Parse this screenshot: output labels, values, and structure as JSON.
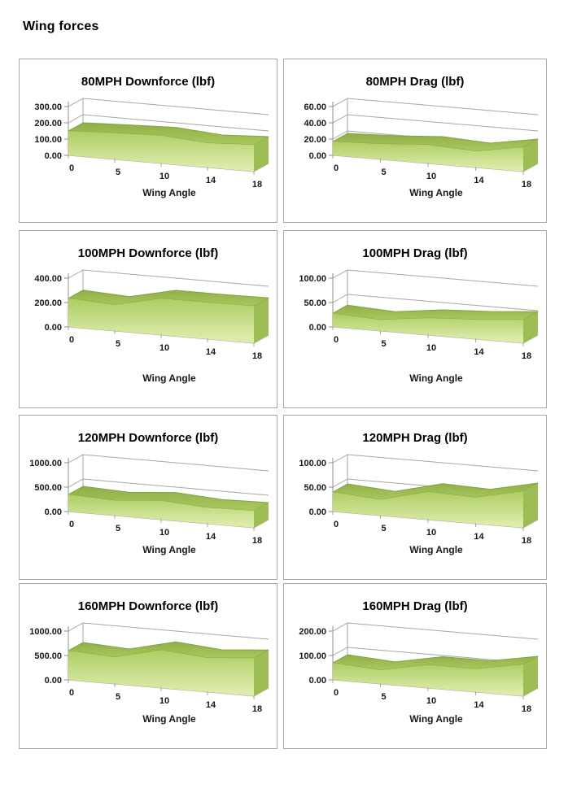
{
  "page": {
    "title": "Wing forces"
  },
  "colors": {
    "panel_border": "#a6a6a6",
    "grid_line": "#a6a6a6",
    "axis_line": "#8f8f8f",
    "axis_text": "#16181d",
    "area_front_top": "#aecd63",
    "area_front_bottom": "#ddecab",
    "area_ribbon_light": "#a9c95e",
    "area_ribbon_dark": "#8fae49",
    "area_ribbon_edge": "#85a243",
    "area_side": "#9dbd55"
  },
  "chart_data": [
    {
      "type": "area",
      "title": "80MPH Downforce (lbf)",
      "xlabel": "Wing Angle",
      "categories": [
        0,
        5,
        10,
        14,
        18
      ],
      "values": [
        150,
        162,
        172,
        150,
        165
      ],
      "yticks": [
        0,
        100,
        200,
        300
      ],
      "ylim": [
        0,
        300
      ],
      "ytick_decimals": 2,
      "grid": true,
      "legend": false,
      "style": "3d-area-green"
    },
    {
      "type": "area",
      "title": "80MPH Drag (lbf)",
      "xlabel": "Wing Angle",
      "categories": [
        0,
        5,
        10,
        14,
        18
      ],
      "values": [
        17,
        19,
        23,
        20,
        30
      ],
      "yticks": [
        0,
        20,
        40,
        60
      ],
      "ylim": [
        0,
        60
      ],
      "ytick_decimals": 2,
      "grid": true,
      "legend": false,
      "style": "3d-area-green"
    },
    {
      "type": "area",
      "title": "100MPH Downforce (lbf)",
      "xlabel": "Wing Angle",
      "categories": [
        0,
        5,
        10,
        14,
        18
      ],
      "values": [
        235,
        215,
        300,
        300,
        305
      ],
      "yticks": [
        0,
        200,
        400
      ],
      "ylim": [
        0,
        400
      ],
      "ytick_decimals": 2,
      "grid": true,
      "legend": false,
      "style": "3d-area-green"
    },
    {
      "type": "area",
      "title": "100MPH Drag (lbf)",
      "xlabel": "Wing Angle",
      "categories": [
        0,
        5,
        10,
        14,
        18
      ],
      "values": [
        28,
        23,
        35,
        40,
        48
      ],
      "yticks": [
        0,
        50,
        100
      ],
      "ylim": [
        0,
        100
      ],
      "ytick_decimals": 2,
      "grid": true,
      "legend": false,
      "style": "3d-area-green"
    },
    {
      "type": "area",
      "title": "120MPH Downforce (lbf)",
      "xlabel": "Wing Angle",
      "categories": [
        0,
        5,
        10,
        14,
        18
      ],
      "values": [
        350,
        310,
        390,
        330,
        350
      ],
      "yticks": [
        0,
        500,
        1000
      ],
      "ylim": [
        0,
        1000
      ],
      "ytick_decimals": 2,
      "grid": true,
      "legend": false,
      "style": "3d-area-green"
    },
    {
      "type": "area",
      "title": "120MPH Drag (lbf)",
      "xlabel": "Wing Angle",
      "categories": [
        0,
        5,
        10,
        14,
        18
      ],
      "values": [
        40,
        33,
        57,
        54,
        75
      ],
      "yticks": [
        0,
        50,
        100
      ],
      "ylim": [
        0,
        100
      ],
      "ytick_decimals": 2,
      "grid": true,
      "legend": false,
      "style": "3d-area-green"
    },
    {
      "type": "area",
      "title": "160MPH Downforce (lbf)",
      "xlabel": "Wing Angle",
      "categories": [
        0,
        5,
        10,
        14,
        18
      ],
      "values": [
        600,
        550,
        780,
        700,
        780
      ],
      "yticks": [
        0,
        500,
        1000
      ],
      "ylim": [
        0,
        1000
      ],
      "ytick_decimals": 2,
      "grid": true,
      "legend": false,
      "style": "3d-area-green"
    },
    {
      "type": "area",
      "title": "160MPH Drag (lbf)",
      "xlabel": "Wing Angle",
      "categories": [
        0,
        5,
        10,
        14,
        18
      ],
      "values": [
        70,
        57,
        95,
        95,
        130
      ],
      "yticks": [
        0,
        100,
        200
      ],
      "ylim": [
        0,
        200
      ],
      "ytick_decimals": 2,
      "grid": true,
      "legend": false,
      "style": "3d-area-green"
    }
  ]
}
